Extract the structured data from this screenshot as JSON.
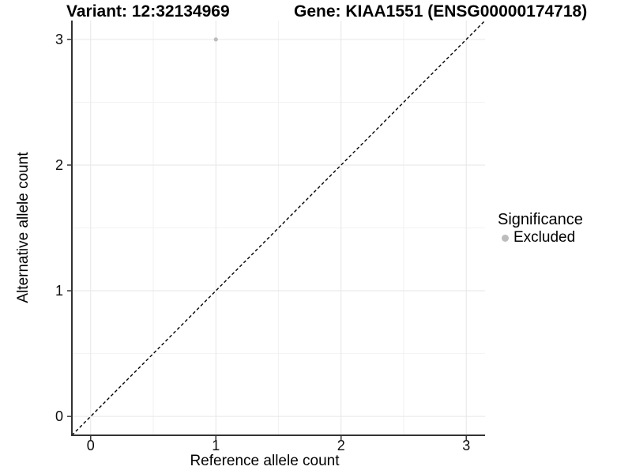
{
  "header": {
    "variant_title": "Variant: 12:32134969",
    "gene_title": "Gene: KIAA1551 (ENSG00000174718)"
  },
  "legend": {
    "title": "Significance",
    "items": [
      {
        "label": "Excluded",
        "color": "#bcbcbc"
      }
    ]
  },
  "chart_data": {
    "type": "scatter",
    "title": "Variant: 12:32134969 | Gene: KIAA1551 (ENSG00000174718)",
    "xlabel": "Reference allele count",
    "ylabel": "Alternative allele count",
    "xlim": [
      -0.15,
      3.15
    ],
    "ylim": [
      -0.15,
      3.15
    ],
    "x_ticks": [
      0,
      1,
      2,
      3
    ],
    "y_ticks": [
      0,
      1,
      2,
      3
    ],
    "minor_grid": [
      0.5,
      1.5,
      2.5
    ],
    "grid": "on",
    "legend_position": "right",
    "series": [
      {
        "name": "Excluded",
        "color": "#bcbcbc",
        "points": [
          [
            1,
            3
          ]
        ]
      }
    ],
    "reference_line": {
      "kind": "identity",
      "from": [
        -0.15,
        -0.15
      ],
      "to": [
        3.15,
        3.15
      ],
      "style": "dashed",
      "color": "#000000"
    }
  },
  "colors": {
    "background": "#ffffff",
    "major_grid": "#e6e6e6",
    "minor_grid": "#f2f2f2",
    "axis_line": "#333333",
    "tick_mark": "#333333",
    "text": "#000000"
  }
}
